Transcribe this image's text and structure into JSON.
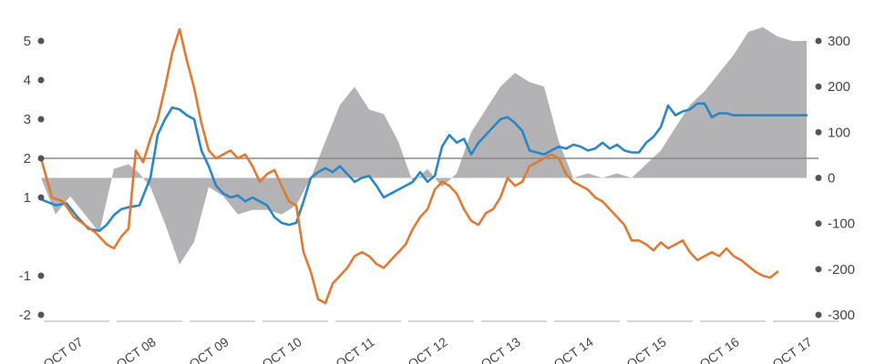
{
  "chart_data": {
    "type": "line",
    "title": "",
    "xlabel": "",
    "ylabel": "",
    "y2label": "",
    "grid": false,
    "legend": "none",
    "x_categories": [
      "OCT 07",
      "OCT 08",
      "OCT 09",
      "OCT 10",
      "OCT 11",
      "OCT 12",
      "OCT 13",
      "OCT 14",
      "OCT 15",
      "OCT 16",
      "OCT 17"
    ],
    "left_axis": {
      "ticks": [
        "-2",
        "-1",
        "1",
        "2",
        "3",
        "4",
        "5"
      ],
      "tick_values": [
        -2,
        -1,
        1,
        2,
        3,
        4,
        5
      ],
      "range": [
        -2.3,
        6.0
      ],
      "reference_value": 2
    },
    "right_axis": {
      "ticks": [
        "-300",
        "-200",
        "-100",
        "0",
        "100",
        "200",
        "300"
      ],
      "tick_values": [
        -300,
        -200,
        -100,
        0,
        100,
        200,
        300
      ],
      "range": [
        -300,
        400
      ]
    },
    "colors": {
      "blue": "#2a86c5",
      "orange": "#e07a32",
      "gray_area": "#b3b3b6",
      "zero_line": "#888888",
      "tick_dot": "#555555"
    },
    "series": [
      {
        "kind": "line",
        "axis": "left",
        "color_key": "blue",
        "x": [
          0,
          0.2,
          0.35,
          0.5,
          0.65,
          0.8,
          0.9,
          1.0,
          1.1,
          1.2,
          1.35,
          1.5,
          1.6,
          1.7,
          1.8,
          1.9,
          2.0,
          2.1,
          2.2,
          2.3,
          2.4,
          2.5,
          2.6,
          2.7,
          2.8,
          2.9,
          3.0,
          3.1,
          3.2,
          3.3,
          3.4,
          3.5,
          3.6,
          3.7,
          3.8,
          3.9,
          4.0,
          4.1,
          4.2,
          4.3,
          4.4,
          4.5,
          4.6,
          4.7,
          4.8,
          4.9,
          5.0,
          5.1,
          5.2,
          5.3,
          5.4,
          5.5,
          5.6,
          5.7,
          5.8,
          5.9,
          6.0,
          6.1,
          6.2,
          6.3,
          6.4,
          6.5,
          6.6,
          6.7,
          6.8,
          6.9,
          7.0,
          7.1,
          7.2,
          7.3,
          7.4,
          7.5,
          7.6,
          7.7,
          7.8,
          7.9,
          8.0,
          8.1,
          8.2,
          8.3,
          8.4,
          8.5,
          8.6,
          8.7,
          8.8,
          8.9,
          9.0,
          9.1,
          9.2,
          9.3,
          9.4,
          9.5,
          9.6,
          9.7,
          9.8,
          9.9,
          10.0,
          10.1,
          10.2,
          10.3,
          10.4,
          10.5
        ],
        "values": [
          0.95,
          0.8,
          0.85,
          0.5,
          0.2,
          0.15,
          0.3,
          0.55,
          0.7,
          0.75,
          0.8,
          1.5,
          2.6,
          3.0,
          3.3,
          3.25,
          3.1,
          3.0,
          2.2,
          1.8,
          1.3,
          1.1,
          1.0,
          1.05,
          0.9,
          1.0,
          0.9,
          0.8,
          0.5,
          0.35,
          0.3,
          0.35,
          0.9,
          1.5,
          1.65,
          1.75,
          1.65,
          1.8,
          1.6,
          1.4,
          1.5,
          1.55,
          1.3,
          1.0,
          1.1,
          1.2,
          1.3,
          1.4,
          1.65,
          1.4,
          1.55,
          2.3,
          2.6,
          2.4,
          2.5,
          2.1,
          2.4,
          2.6,
          2.8,
          3.0,
          3.05,
          2.9,
          2.7,
          2.2,
          2.15,
          2.1,
          2.2,
          2.3,
          2.25,
          2.35,
          2.3,
          2.2,
          2.25,
          2.4,
          2.25,
          2.35,
          2.2,
          2.15,
          2.15,
          2.4,
          2.55,
          2.8,
          3.35,
          3.1,
          3.2,
          3.25,
          3.4,
          3.4,
          3.05,
          3.15,
          3.15,
          3.1,
          3.1,
          3.1,
          3.1,
          3.1,
          3.1,
          3.1,
          3.1,
          3.1,
          3.1,
          3.1
        ]
      },
      {
        "kind": "line",
        "axis": "left",
        "color_key": "orange",
        "x": [
          0,
          0.15,
          0.3,
          0.45,
          0.6,
          0.75,
          0.9,
          1.0,
          1.1,
          1.2,
          1.3,
          1.4,
          1.5,
          1.6,
          1.7,
          1.8,
          1.9,
          2.0,
          2.1,
          2.2,
          2.3,
          2.4,
          2.5,
          2.6,
          2.7,
          2.8,
          2.9,
          3.0,
          3.1,
          3.2,
          3.3,
          3.4,
          3.5,
          3.6,
          3.7,
          3.8,
          3.9,
          4.0,
          4.1,
          4.2,
          4.3,
          4.4,
          4.5,
          4.6,
          4.7,
          4.8,
          4.9,
          5.0,
          5.1,
          5.2,
          5.3,
          5.4,
          5.5,
          5.6,
          5.7,
          5.8,
          5.9,
          6.0,
          6.1,
          6.2,
          6.3,
          6.4,
          6.5,
          6.6,
          6.7,
          6.8,
          6.9,
          7.0,
          7.1,
          7.2,
          7.3,
          7.4,
          7.5,
          7.6,
          7.7,
          7.8,
          7.9,
          8.0,
          8.1,
          8.2,
          8.3,
          8.4,
          8.5,
          8.6,
          8.7,
          8.8,
          8.9,
          9.0,
          9.1,
          9.2,
          9.3,
          9.4,
          9.5,
          9.6,
          9.7,
          9.8,
          9.9,
          10.0,
          10.1
        ],
        "values": [
          2.0,
          1.0,
          0.9,
          0.5,
          0.3,
          0.1,
          -0.2,
          -0.3,
          0.0,
          0.2,
          2.2,
          1.9,
          2.5,
          3.0,
          3.8,
          4.7,
          5.3,
          4.5,
          3.8,
          2.9,
          2.2,
          2.0,
          2.1,
          2.2,
          2.0,
          2.1,
          1.8,
          1.4,
          1.6,
          1.7,
          1.3,
          0.9,
          0.8,
          -0.4,
          -0.9,
          -1.6,
          -1.7,
          -1.2,
          -1.0,
          -0.8,
          -0.5,
          -0.4,
          -0.5,
          -0.7,
          -0.8,
          -0.6,
          -0.4,
          -0.2,
          0.2,
          0.5,
          0.7,
          1.2,
          1.4,
          1.3,
          1.1,
          0.7,
          0.4,
          0.3,
          0.6,
          0.7,
          1.0,
          1.5,
          1.3,
          1.4,
          1.8,
          1.9,
          2.0,
          2.1,
          2.0,
          1.6,
          1.4,
          1.3,
          1.2,
          1.0,
          0.9,
          0.7,
          0.5,
          0.3,
          -0.1,
          -0.1,
          -0.2,
          -0.35,
          -0.15,
          -0.3,
          -0.2,
          -0.1,
          -0.4,
          -0.6,
          -0.5,
          -0.4,
          -0.5,
          -0.3,
          -0.5,
          -0.6,
          -0.75,
          -0.9,
          -1.0,
          -1.05,
          -0.9
        ]
      },
      {
        "kind": "area",
        "axis": "right",
        "color_key": "gray_area",
        "x": [
          0,
          0.2,
          0.4,
          0.6,
          0.8,
          1.0,
          1.2,
          1.35,
          1.5,
          1.7,
          1.9,
          2.1,
          2.3,
          2.5,
          2.7,
          2.9,
          3.1,
          3.3,
          3.5,
          3.7,
          3.9,
          4.1,
          4.3,
          4.5,
          4.7,
          4.9,
          5.1,
          5.3,
          5.5,
          5.7,
          5.9,
          6.1,
          6.3,
          6.5,
          6.7,
          6.9,
          7.1,
          7.3,
          7.5,
          7.7,
          7.9,
          8.1,
          8.3,
          8.5,
          8.7,
          8.9,
          9.1,
          9.3,
          9.5,
          9.7,
          9.9,
          10.1,
          10.3,
          10.5
        ],
        "values": [
          0,
          -80,
          -40,
          -80,
          -120,
          20,
          30,
          10,
          -20,
          -100,
          -190,
          -140,
          -20,
          -40,
          -80,
          -70,
          -70,
          -80,
          -60,
          0,
          80,
          160,
          200,
          150,
          140,
          80,
          -10,
          20,
          -20,
          10,
          100,
          150,
          200,
          230,
          210,
          200,
          80,
          0,
          10,
          0,
          10,
          0,
          30,
          60,
          110,
          160,
          190,
          230,
          270,
          320,
          330,
          310,
          300,
          300
        ]
      }
    ]
  }
}
